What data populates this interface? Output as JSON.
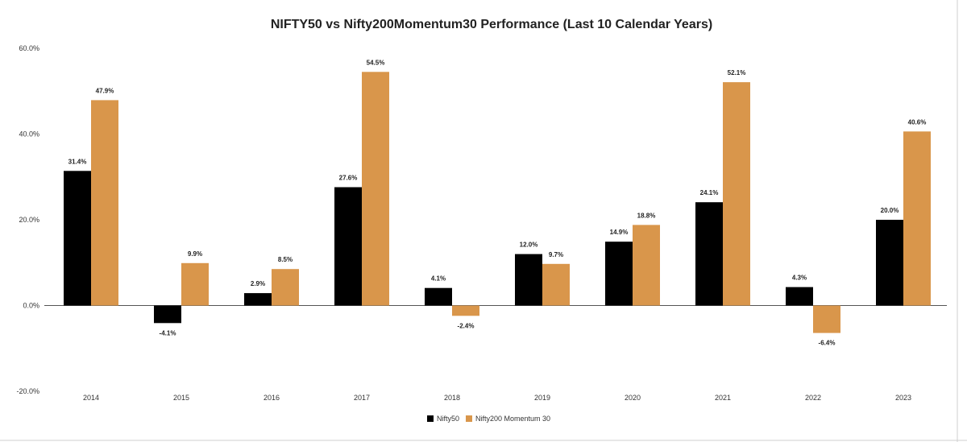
{
  "chart_data": {
    "type": "bar",
    "title": "NIFTY50 vs Nifty200Momentum30 Performance (Last 10 Calendar Years)",
    "xlabel": "",
    "ylabel": "",
    "categories": [
      "2014",
      "2015",
      "2016",
      "2017",
      "2018",
      "2019",
      "2020",
      "2021",
      "2022",
      "2023"
    ],
    "series": [
      {
        "name": "Nifty50",
        "color": "#000000",
        "values": [
          31.4,
          -4.1,
          2.9,
          27.6,
          4.1,
          12.0,
          14.9,
          24.1,
          4.3,
          20.0
        ],
        "labels": [
          "31.4%",
          "-4.1%",
          "2.9%",
          "27.6%",
          "4.1%",
          "12.0%",
          "14.9%",
          "24.1%",
          "4.3%",
          "20.0%"
        ]
      },
      {
        "name": "Nifty200 Momentum 30",
        "color": "#D9964B",
        "values": [
          47.9,
          9.9,
          8.5,
          54.5,
          -2.4,
          9.7,
          18.8,
          52.1,
          -6.4,
          40.6
        ],
        "labels": [
          "47.9%",
          "9.9%",
          "8.5%",
          "54.5%",
          "-2.4%",
          "9.7%",
          "18.8%",
          "52.1%",
          "-6.4%",
          "40.6%"
        ]
      }
    ],
    "ylim": [
      -20,
      60
    ],
    "yticks": [
      60,
      40,
      20,
      0,
      -20
    ],
    "ytick_labels": [
      "60.0%",
      "40.0%",
      "20.0%",
      "0.0%",
      "-20.0%"
    ],
    "grid": false,
    "legend": {
      "position": "bottom-center",
      "entries": [
        "Nifty50",
        "Nifty200 Momentum 30"
      ]
    }
  }
}
